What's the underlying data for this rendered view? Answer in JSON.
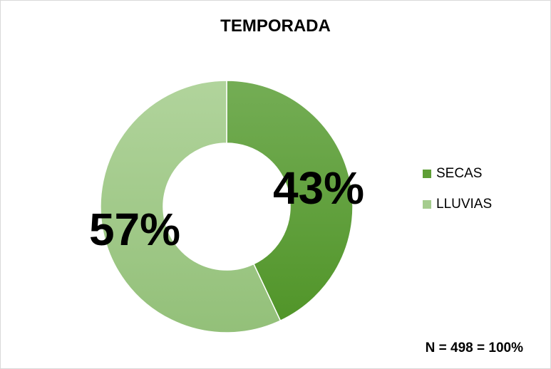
{
  "chart_data": {
    "type": "pie",
    "variant": "donut",
    "title": "TEMPORADA",
    "categories": [
      "SECAS",
      "LLUVIAS"
    ],
    "values": [
      43,
      57
    ],
    "value_labels": [
      "43%",
      "57%"
    ],
    "colors": [
      "#5e9e36",
      "#a5cc8e"
    ],
    "legend_position": "right",
    "annotation": "N = 498 = 100%"
  }
}
